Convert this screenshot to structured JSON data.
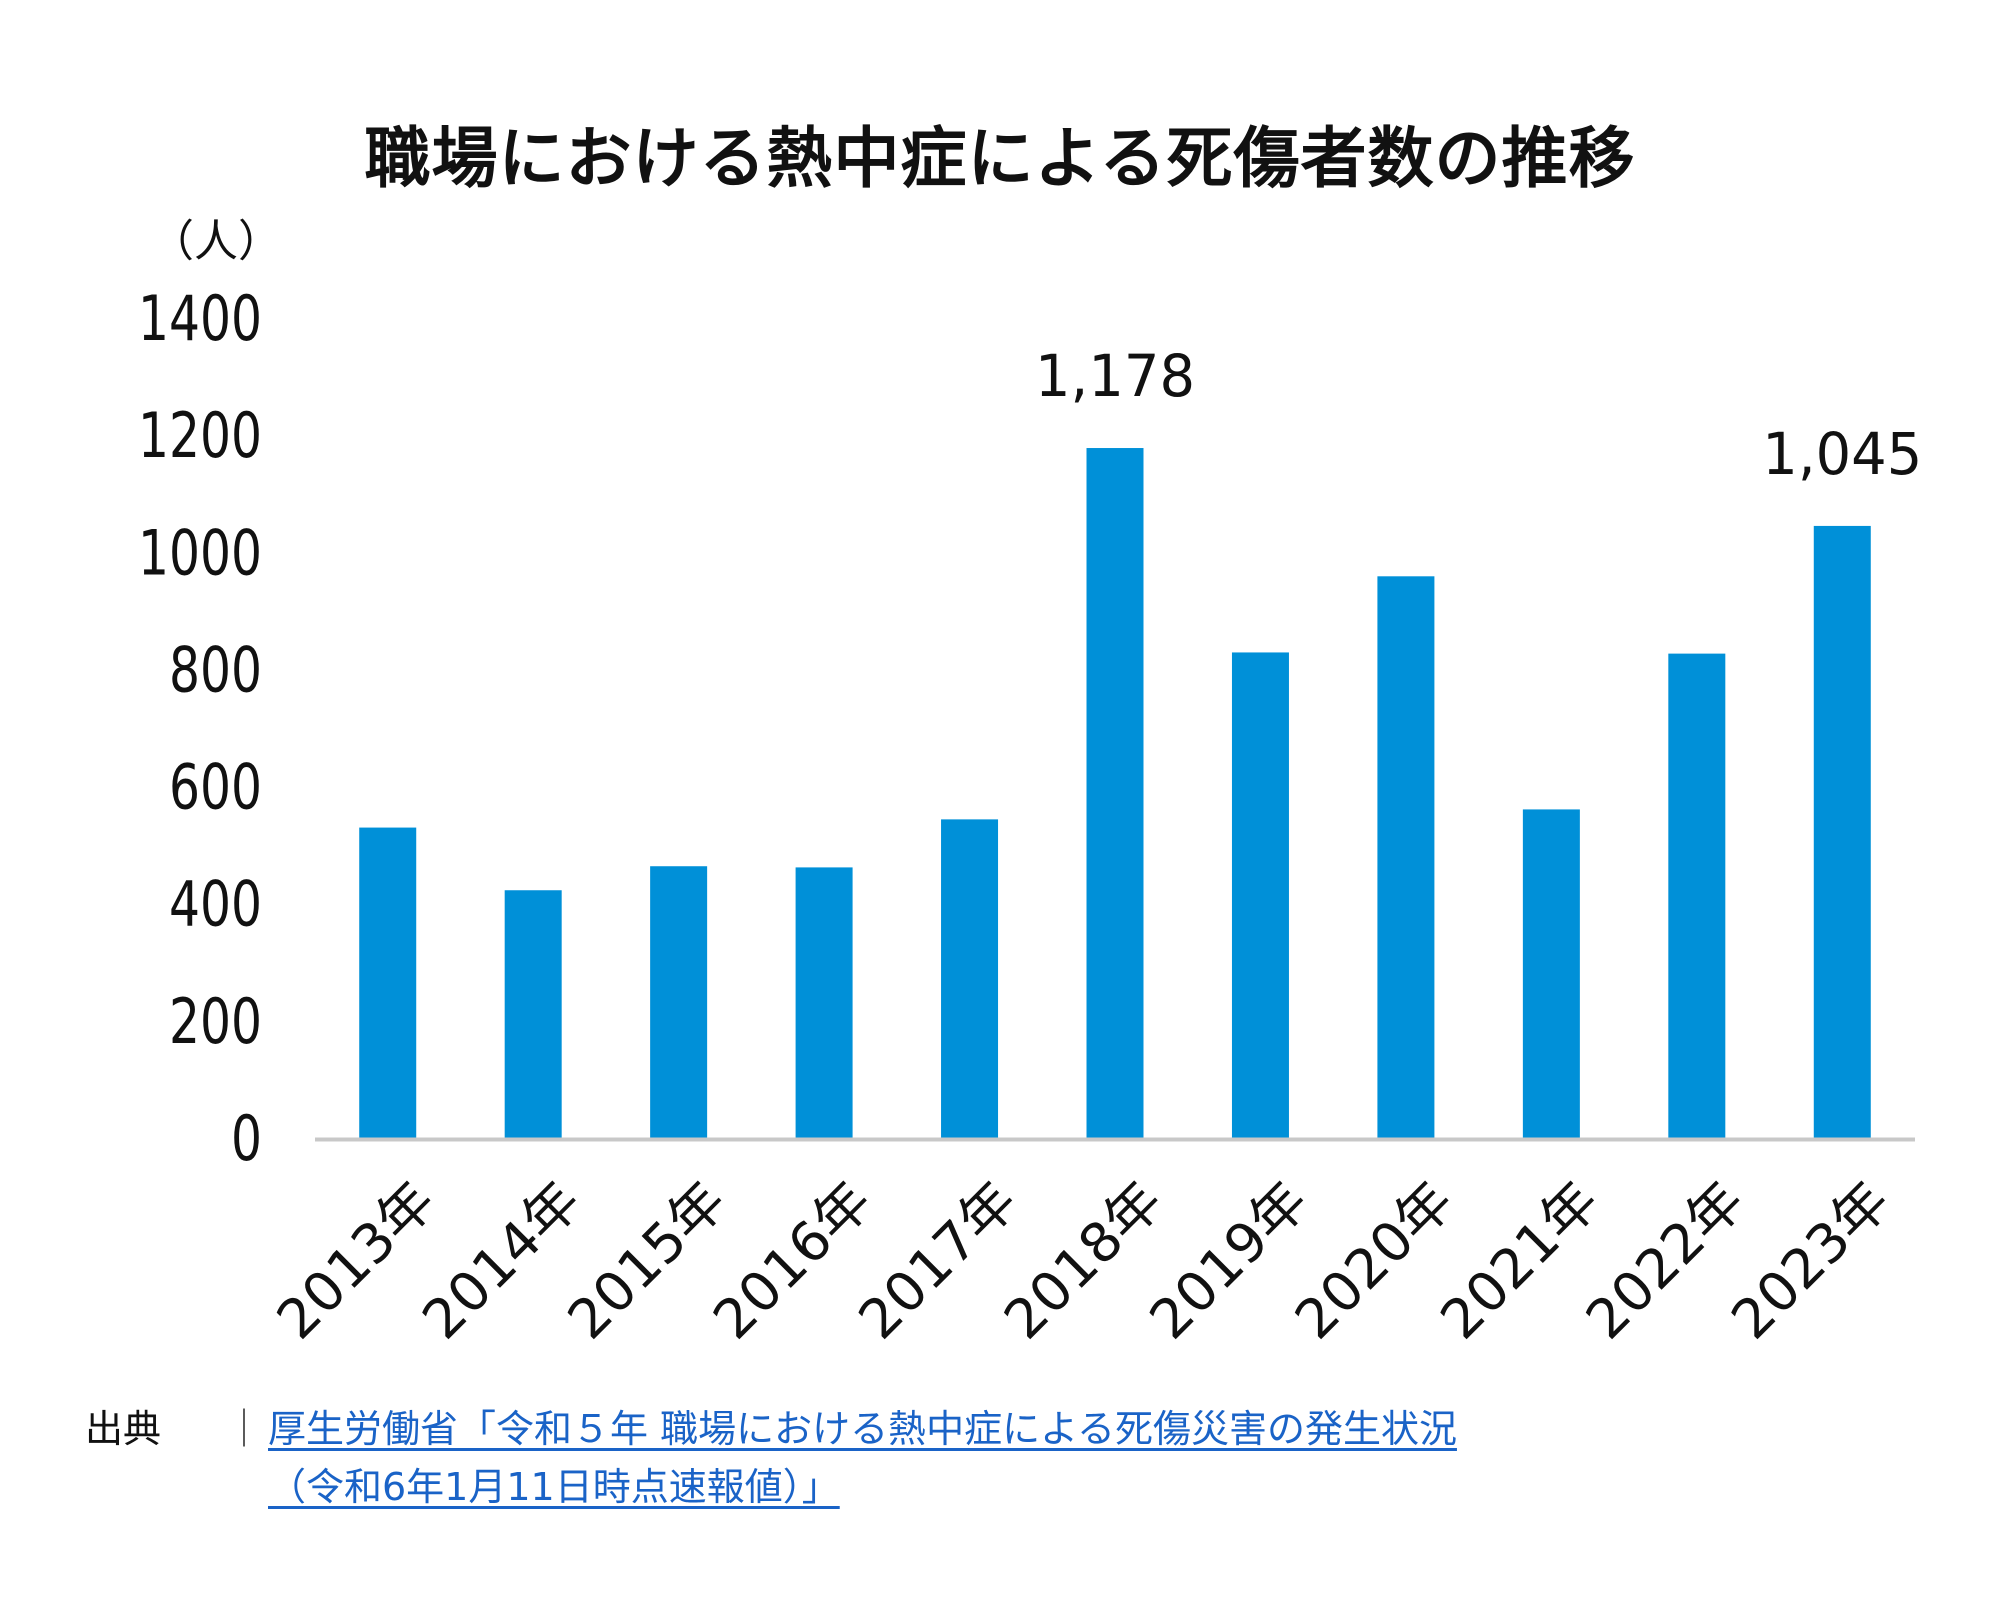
{
  "chart_data": {
    "type": "bar",
    "title": "職場における熱中症による死傷者数の推移",
    "unit_label": "（人）",
    "categories": [
      "2013年",
      "2014年",
      "2015年",
      "2016年",
      "2017年",
      "2018年",
      "2019年",
      "2020年",
      "2021年",
      "2022年",
      "2023年"
    ],
    "values": [
      530,
      423,
      464,
      462,
      544,
      1178,
      829,
      959,
      561,
      827,
      1045
    ],
    "data_labels": {
      "5": "1,178",
      "10": "1,045"
    },
    "ylim": [
      0,
      1400
    ],
    "yticks": [
      0,
      200,
      400,
      600,
      800,
      1000,
      1200,
      1400
    ],
    "bar_color": "#0090d8",
    "axis_color": "#c8c8c8",
    "grid": false,
    "legend": "none"
  },
  "source": {
    "label": "出典",
    "separator": "｜",
    "link_line1": "厚生労働省「令和５年 職場における熱中症による死傷災害の発生状況",
    "link_line2": "（令和6年1月11日時点速報値）」",
    "link_color": "#1a63c7"
  }
}
